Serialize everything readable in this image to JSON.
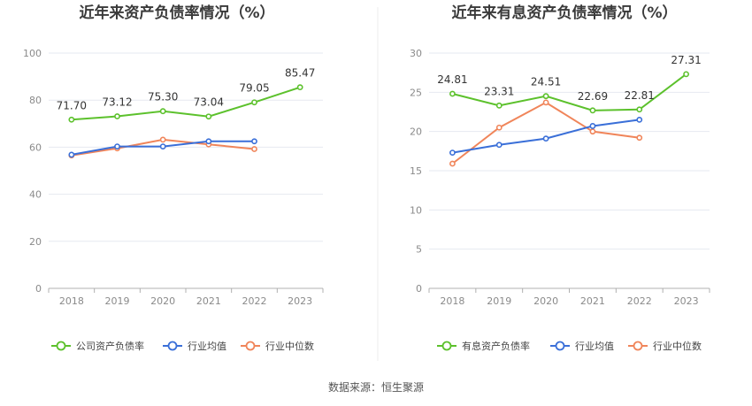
{
  "footer": {
    "source": "数据来源：恒生聚源"
  },
  "chart_data": [
    {
      "type": "line",
      "title": "近年来资产负债率情况（%）",
      "categories": [
        "2018",
        "2019",
        "2020",
        "2021",
        "2022",
        "2023"
      ],
      "ylim": [
        0,
        100
      ],
      "yticks": [
        0,
        20,
        40,
        60,
        80,
        100
      ],
      "grid": true,
      "legend_position": "bottom",
      "series": [
        {
          "name": "公司资产负债率",
          "color": "#5cc12c",
          "values": [
            71.7,
            73.12,
            75.3,
            73.04,
            79.05,
            85.47
          ],
          "labels": [
            "71.70",
            "73.12",
            "75.30",
            "73.04",
            "79.05",
            "85.47"
          ]
        },
        {
          "name": "行业均值",
          "color": "#3a6fd8",
          "values": [
            56.8,
            60.3,
            60.3,
            62.5,
            62.5,
            null
          ]
        },
        {
          "name": "行业中位数",
          "color": "#f0855a",
          "values": [
            56.5,
            59.5,
            63.2,
            61.2,
            59.2,
            null
          ]
        }
      ]
    },
    {
      "type": "line",
      "title": "近年来有息资产负债率情况（%）",
      "categories": [
        "2018",
        "2019",
        "2020",
        "2021",
        "2022",
        "2023"
      ],
      "ylim": [
        0,
        30
      ],
      "yticks": [
        0,
        5,
        10,
        15,
        20,
        25,
        30
      ],
      "grid": true,
      "legend_position": "bottom",
      "series": [
        {
          "name": "有息资产负债率",
          "color": "#5cc12c",
          "values": [
            24.81,
            23.31,
            24.51,
            22.69,
            22.81,
            27.31
          ],
          "labels": [
            "24.81",
            "23.31",
            "24.51",
            "22.69",
            "22.81",
            "27.31"
          ]
        },
        {
          "name": "行业均值",
          "color": "#3a6fd8",
          "values": [
            17.3,
            18.3,
            19.1,
            20.7,
            21.5,
            null
          ]
        },
        {
          "name": "行业中位数",
          "color": "#f0855a",
          "values": [
            15.9,
            20.5,
            23.7,
            20.0,
            19.2,
            null
          ]
        }
      ]
    }
  ]
}
